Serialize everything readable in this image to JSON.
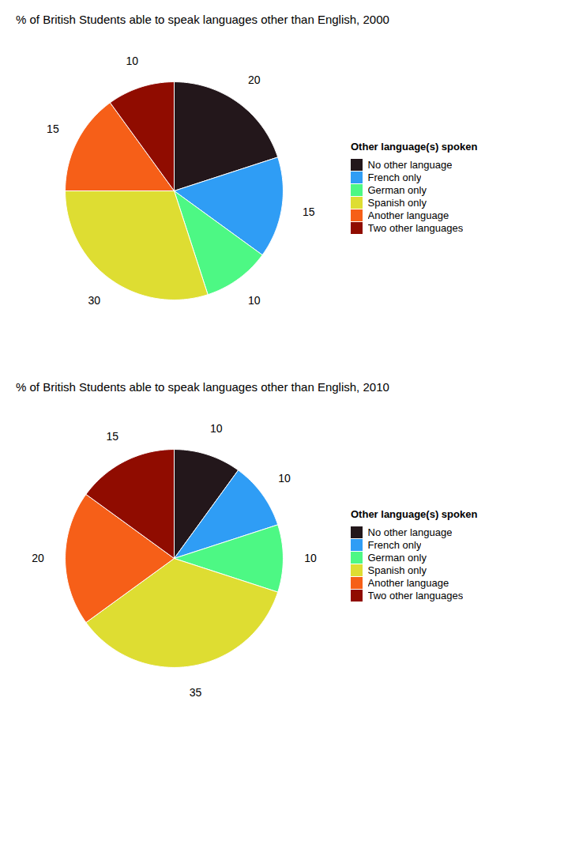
{
  "chart_data": [
    {
      "type": "pie",
      "title": "% of British Students able to speak languages other than English, 2000",
      "categories": [
        "No other language",
        "French only",
        "German only",
        "Spanish only",
        "Another language",
        "Two other languages"
      ],
      "values": [
        20,
        15,
        10,
        30,
        15,
        10
      ],
      "legend_title": "Other language(s) spoken",
      "legend": "right",
      "data_labels": true
    },
    {
      "type": "pie",
      "title": "% of British Students able to speak languages other than English, 2010",
      "categories": [
        "No other language",
        "French only",
        "German only",
        "Spanish only",
        "Another language",
        "Two other languages"
      ],
      "values": [
        10,
        10,
        10,
        35,
        20,
        15
      ],
      "legend_title": "Other language(s) spoken",
      "legend": "right",
      "data_labels": true
    }
  ]
}
